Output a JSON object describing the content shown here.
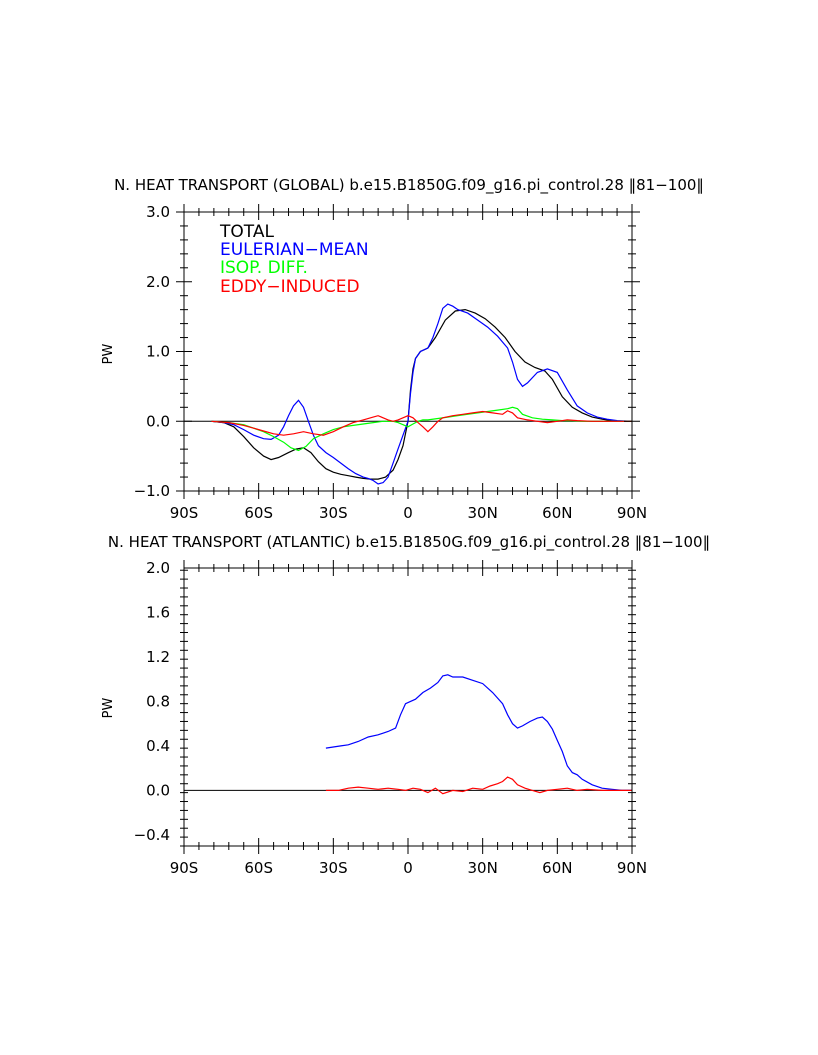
{
  "chart_data": [
    {
      "type": "line",
      "title": "N. HEAT TRANSPORT (GLOBAL) b.e15.B1850G.f09_g16.pi_control.28  ‖81−100‖",
      "xlabel": "",
      "ylabel": "PW",
      "xlim": [
        -90,
        90
      ],
      "ylim": [
        -1.0,
        3.0
      ],
      "xticks": [
        -90,
        -60,
        -30,
        0,
        30,
        60,
        90
      ],
      "xtick_labels": [
        "90S",
        "60S",
        "30S",
        "0",
        "30N",
        "60N",
        "90N"
      ],
      "yticks": [
        -1.0,
        0.0,
        1.0,
        2.0,
        3.0
      ],
      "ytick_labels": [
        "−1.0",
        "0.0",
        "1.0",
        "2.0",
        "3.0"
      ],
      "legend_placement": "top-left",
      "grid": false,
      "series": [
        {
          "name": "TOTAL",
          "color": "#000000",
          "x": [
            -79,
            -74,
            -70,
            -66,
            -62,
            -58,
            -55,
            -52,
            -48,
            -45,
            -42,
            -39,
            -36,
            -33,
            -30,
            -27,
            -24,
            -21,
            -18,
            -15,
            -12,
            -9,
            -6,
            -4,
            -2,
            0,
            1,
            2,
            3,
            5,
            8,
            11,
            15,
            19,
            23,
            27,
            31,
            35,
            39,
            43,
            47,
            51,
            55,
            58,
            62,
            66,
            70,
            74,
            78,
            82,
            86,
            90
          ],
          "y": [
            0.0,
            -0.02,
            -0.08,
            -0.22,
            -0.38,
            -0.5,
            -0.55,
            -0.52,
            -0.45,
            -0.4,
            -0.38,
            -0.45,
            -0.58,
            -0.68,
            -0.73,
            -0.76,
            -0.78,
            -0.8,
            -0.82,
            -0.83,
            -0.83,
            -0.8,
            -0.7,
            -0.55,
            -0.35,
            0.0,
            0.45,
            0.75,
            0.9,
            1.0,
            1.05,
            1.2,
            1.45,
            1.58,
            1.6,
            1.55,
            1.47,
            1.35,
            1.2,
            1.0,
            0.85,
            0.77,
            0.72,
            0.6,
            0.35,
            0.2,
            0.12,
            0.06,
            0.03,
            0.01,
            0.0,
            0.0
          ]
        },
        {
          "name": "EULERIAN−MEAN",
          "color": "#0000ff",
          "x": [
            -79,
            -74,
            -70,
            -66,
            -62,
            -58,
            -55,
            -52,
            -50,
            -48,
            -46,
            -44,
            -42,
            -40,
            -38,
            -36,
            -33,
            -30,
            -27,
            -24,
            -21,
            -18,
            -16,
            -14,
            -12,
            -10,
            -8,
            -6,
            -4,
            -2,
            0,
            1,
            2,
            3,
            5,
            8,
            10,
            12,
            14,
            16,
            18,
            20,
            24,
            28,
            32,
            36,
            40,
            42,
            44,
            46,
            48,
            52,
            56,
            60,
            64,
            68,
            72,
            76,
            80,
            84,
            90
          ],
          "y": [
            0.0,
            -0.02,
            -0.05,
            -0.12,
            -0.2,
            -0.25,
            -0.26,
            -0.2,
            -0.08,
            0.08,
            0.22,
            0.3,
            0.2,
            0.0,
            -0.2,
            -0.35,
            -0.45,
            -0.52,
            -0.6,
            -0.68,
            -0.75,
            -0.8,
            -0.82,
            -0.85,
            -0.9,
            -0.88,
            -0.8,
            -0.6,
            -0.4,
            -0.2,
            0.0,
            0.4,
            0.7,
            0.9,
            1.0,
            1.05,
            1.2,
            1.4,
            1.62,
            1.68,
            1.65,
            1.6,
            1.55,
            1.45,
            1.35,
            1.22,
            1.05,
            0.85,
            0.6,
            0.5,
            0.55,
            0.7,
            0.75,
            0.7,
            0.45,
            0.22,
            0.12,
            0.06,
            0.03,
            0.01,
            0.0
          ]
        },
        {
          "name": "ISOP. DIFF.",
          "color": "#00ff00",
          "x": [
            -79,
            -72,
            -66,
            -62,
            -58,
            -54,
            -50,
            -47,
            -44,
            -41,
            -38,
            -34,
            -30,
            -26,
            -22,
            -18,
            -14,
            -10,
            -6,
            -4,
            -2,
            0,
            2,
            4,
            6,
            8,
            12,
            16,
            20,
            24,
            28,
            32,
            36,
            40,
            42,
            44,
            46,
            50,
            54,
            58,
            62,
            66,
            70,
            76,
            82,
            90
          ],
          "y": [
            0.0,
            -0.02,
            -0.05,
            -0.1,
            -0.15,
            -0.22,
            -0.3,
            -0.38,
            -0.42,
            -0.36,
            -0.25,
            -0.18,
            -0.12,
            -0.08,
            -0.06,
            -0.04,
            -0.02,
            0.0,
            0.0,
            -0.02,
            -0.05,
            -0.08,
            -0.04,
            0.0,
            0.02,
            0.02,
            0.04,
            0.06,
            0.08,
            0.1,
            0.12,
            0.14,
            0.16,
            0.18,
            0.2,
            0.18,
            0.1,
            0.05,
            0.03,
            0.02,
            0.01,
            0.01,
            0.0,
            0.0,
            0.0,
            0.0
          ]
        },
        {
          "name": "EDDY−INDUCED",
          "color": "#ff0000",
          "x": [
            -79,
            -72,
            -66,
            -62,
            -58,
            -54,
            -50,
            -46,
            -42,
            -38,
            -34,
            -30,
            -26,
            -22,
            -18,
            -14,
            -12,
            -10,
            -8,
            -6,
            -4,
            -2,
            0,
            2,
            4,
            6,
            8,
            10,
            12,
            14,
            18,
            22,
            26,
            30,
            34,
            38,
            40,
            42,
            44,
            48,
            52,
            56,
            60,
            64,
            68,
            74,
            80,
            90
          ],
          "y": [
            0.0,
            -0.02,
            -0.06,
            -0.1,
            -0.14,
            -0.18,
            -0.2,
            -0.18,
            -0.15,
            -0.18,
            -0.2,
            -0.15,
            -0.08,
            -0.02,
            0.02,
            0.06,
            0.08,
            0.05,
            0.02,
            0.0,
            0.02,
            0.05,
            0.08,
            0.05,
            -0.02,
            -0.08,
            -0.15,
            -0.08,
            0.0,
            0.05,
            0.08,
            0.1,
            0.12,
            0.14,
            0.12,
            0.1,
            0.15,
            0.12,
            0.05,
            0.02,
            0.0,
            -0.02,
            0.0,
            0.02,
            0.01,
            0.0,
            0.0,
            0.0
          ]
        }
      ]
    },
    {
      "type": "line",
      "title": "N. HEAT TRANSPORT (ATLANTIC) b.e15.B1850G.f09_g16.pi_control.28  ‖81−100‖",
      "xlabel": "",
      "ylabel": "PW",
      "xlim": [
        -90,
        90
      ],
      "ylim": [
        -0.5,
        2.0
      ],
      "xticks": [
        -90,
        -60,
        -30,
        0,
        30,
        60,
        90
      ],
      "xtick_labels": [
        "90S",
        "60S",
        "30S",
        "0",
        "30N",
        "60N",
        "90N"
      ],
      "yticks": [
        -0.4,
        0.0,
        0.4,
        0.8,
        1.2,
        1.6,
        2.0
      ],
      "ytick_labels": [
        "−0.4",
        "0.0",
        "0.4",
        "0.8",
        "1.2",
        "1.6",
        "2.0"
      ],
      "grid": false,
      "series": [
        {
          "name": "EULERIAN−MEAN",
          "color": "#0000ff",
          "x": [
            -33,
            -30,
            -27,
            -24,
            -20,
            -16,
            -12,
            -8,
            -5,
            -3,
            -1,
            1,
            3,
            6,
            9,
            12,
            14,
            16,
            18,
            22,
            26,
            30,
            34,
            38,
            40,
            42,
            44,
            46,
            49,
            52,
            54,
            56,
            58,
            60,
            62,
            64,
            66,
            68,
            70,
            74,
            78,
            82,
            86,
            90
          ],
          "y": [
            0.38,
            0.39,
            0.4,
            0.41,
            0.44,
            0.48,
            0.5,
            0.53,
            0.56,
            0.68,
            0.78,
            0.8,
            0.82,
            0.88,
            0.92,
            0.97,
            1.03,
            1.04,
            1.02,
            1.02,
            0.99,
            0.96,
            0.88,
            0.78,
            0.68,
            0.6,
            0.56,
            0.58,
            0.62,
            0.65,
            0.66,
            0.62,
            0.55,
            0.45,
            0.35,
            0.22,
            0.16,
            0.14,
            0.1,
            0.05,
            0.02,
            0.01,
            0.0,
            0.0
          ]
        },
        {
          "name": "EDDY−INDUCED",
          "color": "#ff0000",
          "x": [
            -33,
            -28,
            -24,
            -20,
            -16,
            -12,
            -8,
            -4,
            -1,
            2,
            5,
            8,
            11,
            14,
            18,
            22,
            26,
            30,
            33,
            36,
            38,
            40,
            42,
            44,
            47,
            50,
            53,
            56,
            60,
            64,
            68,
            72,
            78,
            84,
            90
          ],
          "y": [
            0.0,
            0.0,
            0.02,
            0.03,
            0.02,
            0.01,
            0.02,
            0.01,
            0.0,
            0.02,
            0.01,
            -0.02,
            0.02,
            -0.03,
            0.0,
            -0.01,
            0.02,
            0.01,
            0.04,
            0.06,
            0.08,
            0.12,
            0.1,
            0.05,
            0.02,
            0.0,
            -0.02,
            0.0,
            0.01,
            0.02,
            0.0,
            0.01,
            0.0,
            0.0,
            0.0
          ]
        }
      ]
    }
  ]
}
